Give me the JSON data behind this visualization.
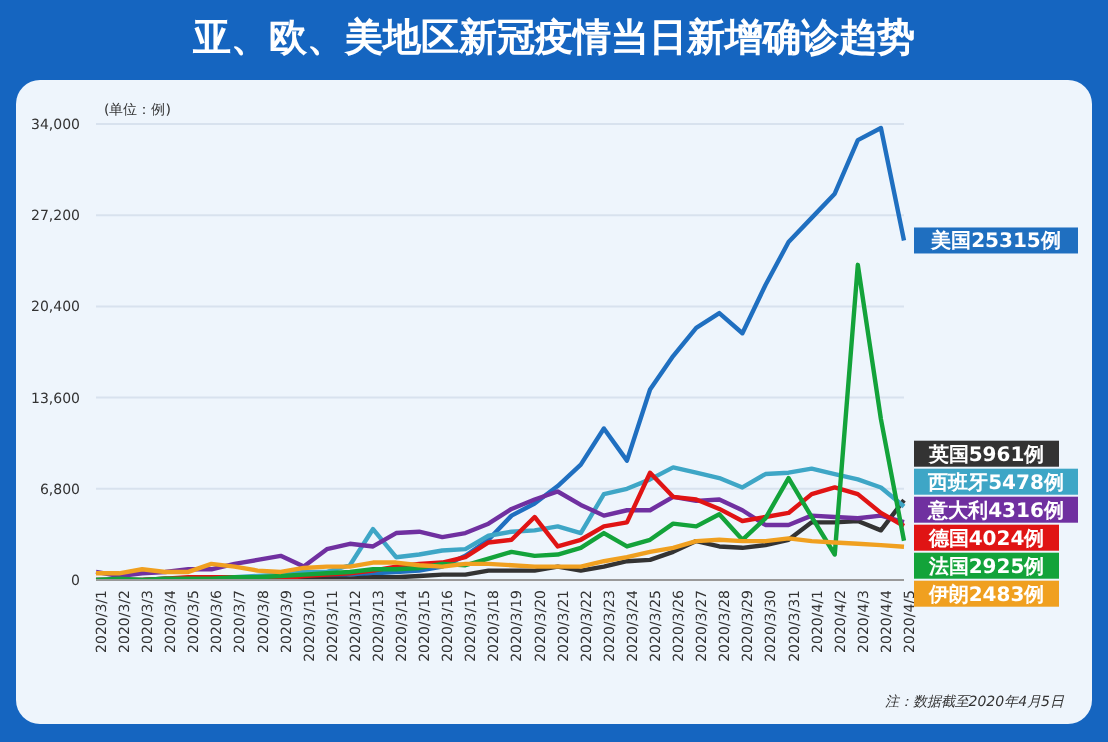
{
  "chart_data": {
    "type": "line",
    "title": "亚、欧、美地区新冠疫情当日新增确诊趋势",
    "ylabel": "(单位：例)",
    "categories": [
      "2020/3/1",
      "2020/3/2",
      "2020/3/3",
      "2020/3/4",
      "2020/3/5",
      "2020/3/6",
      "2020/3/7",
      "2020/3/8",
      "2020/3/9",
      "2020/3/10",
      "2020/3/11",
      "2020/3/12",
      "2020/3/13",
      "2020/3/14",
      "2020/3/15",
      "2020/3/16",
      "2020/3/17",
      "2020/3/18",
      "2020/3/19",
      "2020/3/20",
      "2020/3/21",
      "2020/3/22",
      "2020/3/23",
      "2020/3/24",
      "2020/3/25",
      "2020/3/26",
      "2020/3/27",
      "2020/3/28",
      "2020/3/29",
      "2020/3/30",
      "2020/3/31",
      "2020/4/1",
      "2020/4/2",
      "2020/4/3",
      "2020/4/4",
      "2020/4/5"
    ],
    "ylim": [
      0,
      34000
    ],
    "yticks": [
      {
        "value": 0,
        "label": "0"
      },
      {
        "value": 6800,
        "label": "6,800"
      },
      {
        "value": 13600,
        "label": "13,600"
      },
      {
        "value": 20400,
        "label": "20,400"
      },
      {
        "value": 27200,
        "label": "27,200"
      },
      {
        "value": 34000,
        "label": "34,000"
      }
    ],
    "grid": "y",
    "annotations": [
      "注：数据截至2020年4月5日"
    ],
    "series": [
      {
        "color": "#1f6fc0",
        "values": [
          null,
          null,
          null,
          null,
          null,
          100,
          100,
          100,
          100,
          300,
          300,
          400,
          500,
          600,
          700,
          1000,
          1800,
          3000,
          4800,
          5700,
          7000,
          8600,
          11300,
          8900,
          14200,
          16700,
          18800,
          19900,
          18400,
          22000,
          25200,
          27000,
          28800,
          32800,
          33700,
          25315
        ],
        "value_labels": [
          null,
          null,
          null,
          null,
          null,
          null,
          null,
          null,
          null,
          null,
          null,
          null,
          null,
          null,
          null,
          null,
          null,
          null,
          null,
          null,
          null,
          null,
          null,
          null,
          null,
          null,
          null,
          null,
          null,
          null,
          null,
          null,
          null,
          null,
          null,
          "美国25315例"
        ]
      },
      {
        "color": "#333333",
        "values": [
          0,
          0,
          0,
          100,
          0,
          100,
          100,
          100,
          100,
          100,
          100,
          100,
          200,
          200,
          300,
          400,
          400,
          700,
          700,
          700,
          1000,
          700,
          1000,
          1400,
          1500,
          2100,
          2900,
          2500,
          2400,
          2600,
          3000,
          4300,
          4300,
          4400,
          3700,
          5961
        ],
        "value_labels": [
          null,
          null,
          null,
          null,
          null,
          null,
          null,
          null,
          null,
          null,
          null,
          null,
          null,
          null,
          null,
          null,
          null,
          null,
          null,
          null,
          null,
          null,
          null,
          null,
          null,
          null,
          null,
          null,
          null,
          null,
          null,
          null,
          null,
          null,
          null,
          "英国5961例"
        ]
      },
      {
        "color": "#3ea6c6",
        "values": [
          null,
          null,
          null,
          null,
          null,
          100,
          200,
          300,
          400,
          600,
          600,
          1100,
          3800,
          1700,
          1900,
          2200,
          2300,
          3300,
          3600,
          3700,
          4000,
          3500,
          6400,
          6800,
          7500,
          8400,
          8000,
          7600,
          6900,
          7900,
          8000,
          8300,
          7900,
          7500,
          6900,
          5478
        ],
        "value_labels": [
          null,
          null,
          null,
          null,
          null,
          null,
          null,
          null,
          null,
          null,
          null,
          null,
          null,
          null,
          null,
          null,
          null,
          null,
          null,
          null,
          null,
          null,
          null,
          null,
          null,
          null,
          null,
          null,
          null,
          null,
          null,
          null,
          null,
          null,
          null,
          "西班牙5478例"
        ]
      },
      {
        "color": "#7030a0",
        "values": [
          600,
          300,
          500,
          600,
          800,
          800,
          1200,
          1500,
          1800,
          1000,
          2300,
          2700,
          2500,
          3500,
          3600,
          3200,
          3500,
          4200,
          5300,
          6000,
          6600,
          5600,
          4800,
          5200,
          5200,
          6200,
          5900,
          6000,
          5200,
          4100,
          4100,
          4800,
          4700,
          4600,
          4800,
          4316
        ],
        "value_labels": [
          null,
          null,
          null,
          null,
          null,
          null,
          null,
          null,
          null,
          null,
          null,
          null,
          null,
          null,
          null,
          null,
          null,
          null,
          null,
          null,
          null,
          null,
          null,
          null,
          null,
          null,
          null,
          null,
          null,
          null,
          null,
          null,
          null,
          null,
          null,
          "意大利4316例"
        ]
      },
      {
        "color": "#e01414",
        "values": [
          0,
          0,
          0,
          100,
          200,
          200,
          200,
          200,
          100,
          300,
          400,
          500,
          700,
          1000,
          1200,
          1300,
          1700,
          2800,
          3000,
          4700,
          2500,
          3000,
          4000,
          4300,
          8000,
          6200,
          6000,
          5300,
          4400,
          4700,
          5000,
          6400,
          6900,
          6400,
          5000,
          4024
        ],
        "value_labels": [
          null,
          null,
          null,
          null,
          null,
          null,
          null,
          null,
          null,
          null,
          null,
          null,
          null,
          null,
          null,
          null,
          null,
          null,
          null,
          null,
          null,
          null,
          null,
          null,
          null,
          null,
          null,
          null,
          null,
          null,
          null,
          null,
          null,
          null,
          null,
          "德国4024例"
        ]
      },
      {
        "color": "#13a33a",
        "values": [
          0,
          100,
          0,
          100,
          100,
          100,
          200,
          200,
          300,
          400,
          500,
          600,
          800,
          800,
          900,
          1200,
          1100,
          1600,
          2100,
          1800,
          1900,
          2400,
          3500,
          2500,
          3000,
          4200,
          4000,
          4900,
          3000,
          4600,
          7600,
          4700,
          1900,
          23500,
          12000,
          2925
        ],
        "value_labels": [
          null,
          null,
          null,
          null,
          null,
          null,
          null,
          null,
          null,
          null,
          null,
          null,
          null,
          null,
          null,
          null,
          null,
          null,
          null,
          null,
          null,
          null,
          null,
          null,
          null,
          null,
          null,
          null,
          null,
          null,
          null,
          null,
          null,
          null,
          null,
          "法国2925例"
        ]
      },
      {
        "color": "#f0a020",
        "values": [
          500,
          500,
          800,
          600,
          600,
          1200,
          1000,
          700,
          600,
          900,
          1000,
          1000,
          1300,
          1300,
          1100,
          1000,
          1200,
          1200,
          1100,
          1000,
          1000,
          1000,
          1400,
          1700,
          2100,
          2400,
          2900,
          3000,
          2900,
          2900,
          3100,
          2900,
          2800,
          2700,
          2600,
          2483
        ],
        "value_labels": [
          null,
          null,
          null,
          null,
          null,
          null,
          null,
          null,
          null,
          null,
          null,
          null,
          null,
          null,
          null,
          null,
          null,
          null,
          null,
          null,
          null,
          null,
          null,
          null,
          null,
          null,
          null,
          null,
          null,
          null,
          null,
          null,
          null,
          null,
          null,
          "伊朗2483例"
        ]
      }
    ]
  }
}
